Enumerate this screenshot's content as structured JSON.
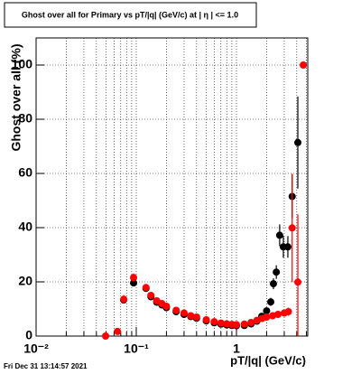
{
  "chart_data": {
    "type": "scatter",
    "title": "Ghost over all for Primary vs pT/|q| (GeV/c) at |  η | <= 1.0",
    "x_label": "pT/|q| (GeV/c)",
    "y_label": "Ghost over all (%)",
    "footer": "Fri Dec 31 13:14:57 2021",
    "x_log": true,
    "xlim": [
      0.01,
      5.15
    ],
    "ylim": [
      0,
      110
    ],
    "xticks": [
      {
        "value": 0.01,
        "label": "10⁻²"
      },
      {
        "value": 0.1,
        "label": "10⁻¹"
      },
      1
    ],
    "x_minor_ticks": [
      0.02,
      0.03,
      0.04,
      0.05,
      0.06,
      0.07,
      0.08,
      0.09,
      0.2,
      0.3,
      0.4,
      0.5,
      0.6,
      0.7,
      0.8,
      0.9,
      2,
      3,
      4,
      5
    ],
    "yticks": [
      0,
      20,
      40,
      60,
      80,
      100
    ],
    "grid": true,
    "series": [
      {
        "color": "#000000",
        "x": [
          0.0748,
          0.094,
          0.125,
          0.14,
          0.16,
          0.18,
          0.2,
          0.25,
          0.3,
          0.35,
          0.4,
          0.5,
          0.6,
          0.7,
          0.8,
          0.9,
          1.0,
          1.2,
          1.4,
          1.6,
          1.79,
          2.0,
          2.2,
          2.34,
          2.5,
          2.7,
          2.94,
          3.26,
          3.6,
          4.1
        ],
        "values": [
          13.3,
          19.6,
          17.6,
          14.5,
          12.5,
          11.5,
          10.5,
          9,
          8,
          7.2,
          6.6,
          5.6,
          4.9,
          4.4,
          4.1,
          3.9,
          3.8,
          3.9,
          4.5,
          5.5,
          7.3,
          9.3,
          12.6,
          19.3,
          23.6,
          37.2,
          32.9,
          32.9,
          51.5,
          71.4
        ],
        "errors": [
          1,
          1,
          0.8,
          0.6,
          0.5,
          0.5,
          0.4,
          0.3,
          0.3,
          0.3,
          0.3,
          0.3,
          0.3,
          0.3,
          0.3,
          0.3,
          0.3,
          0.3,
          0.4,
          0.5,
          0.8,
          1,
          1.5,
          2,
          2.5,
          4,
          4,
          4,
          8,
          17
        ]
      },
      {
        "color": "#ff0000",
        "x": [
          0.0494,
          0.065,
          0.075,
          0.094,
          0.125,
          0.14,
          0.16,
          0.18,
          0.2,
          0.25,
          0.3,
          0.35,
          0.4,
          0.5,
          0.6,
          0.7,
          0.8,
          0.9,
          1.0,
          1.2,
          1.4,
          1.6,
          1.8,
          2.0,
          2.3,
          2.6,
          3.0,
          3.3,
          3.6,
          4.1,
          4.65
        ],
        "values": [
          0,
          1.7,
          13.6,
          21.6,
          17.9,
          15,
          13,
          12,
          11,
          9.5,
          8.5,
          7.5,
          7,
          6,
          5.3,
          4.8,
          4.5,
          4.3,
          4.2,
          4.4,
          5,
          5.8,
          6.5,
          7,
          7.5,
          8,
          8.5,
          9,
          39.9,
          19.9,
          100
        ],
        "errors": [
          0.3,
          0.8,
          1.5,
          1.5,
          1,
          0.8,
          0.6,
          0.5,
          0.5,
          0.4,
          0.3,
          0.3,
          0.3,
          0.3,
          0.3,
          0.3,
          0.3,
          0.3,
          0.3,
          0.3,
          0.4,
          0.5,
          0.6,
          0.7,
          0.8,
          1,
          1.2,
          1.5,
          20,
          25,
          0
        ]
      }
    ]
  }
}
